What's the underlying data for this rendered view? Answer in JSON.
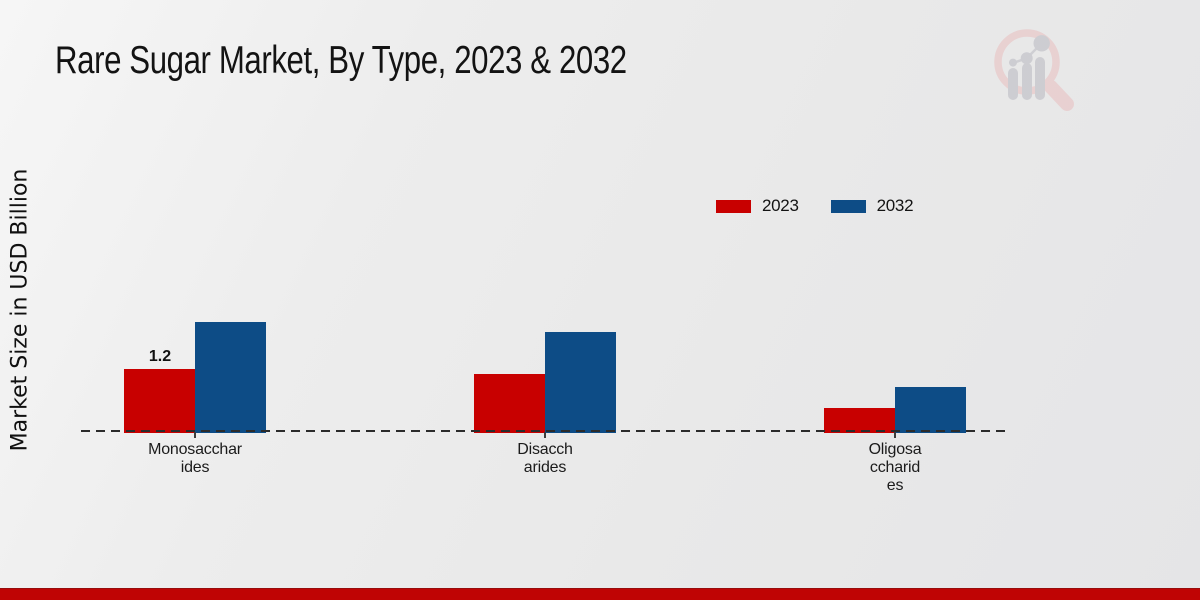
{
  "title": "Rare Sugar Market, By Type, 2023 & 2032",
  "y_axis_label": "Market Size in USD Billion",
  "legend": [
    {
      "label": "2023",
      "color": "#c80000"
    },
    {
      "label": "2032",
      "color": "#0d4c86"
    }
  ],
  "footer": {
    "bar_color": "#bf0404"
  },
  "watermark_icon": "market-research-magnifier-logo",
  "chart_data": {
    "type": "bar",
    "title": "Rare Sugar Market, By Type, 2023 & 2032",
    "xlabel": "",
    "ylabel": "Market Size in USD Billion",
    "categories": [
      "Monosaccharides",
      "Disaccharides",
      "Oligosaccharides"
    ],
    "category_display_lines": [
      [
        "Monosacchar",
        "ides"
      ],
      [
        "Disacch",
        "arides"
      ],
      [
        "Oligosa",
        "ccharid",
        "es"
      ]
    ],
    "series": [
      {
        "name": "2023",
        "color": "#c80000",
        "values": [
          1.2,
          1.1,
          0.45
        ]
      },
      {
        "name": "2032",
        "color": "#0d4c86",
        "values": [
          2.1,
          1.9,
          0.85
        ]
      }
    ],
    "data_labels": [
      {
        "series_index": 0,
        "category_index": 0,
        "text": "1.2"
      }
    ],
    "ylim": [
      0,
      2.5
    ],
    "grid": false,
    "axis_style": "dashed-baseline-only",
    "legend_position": "top-right"
  }
}
